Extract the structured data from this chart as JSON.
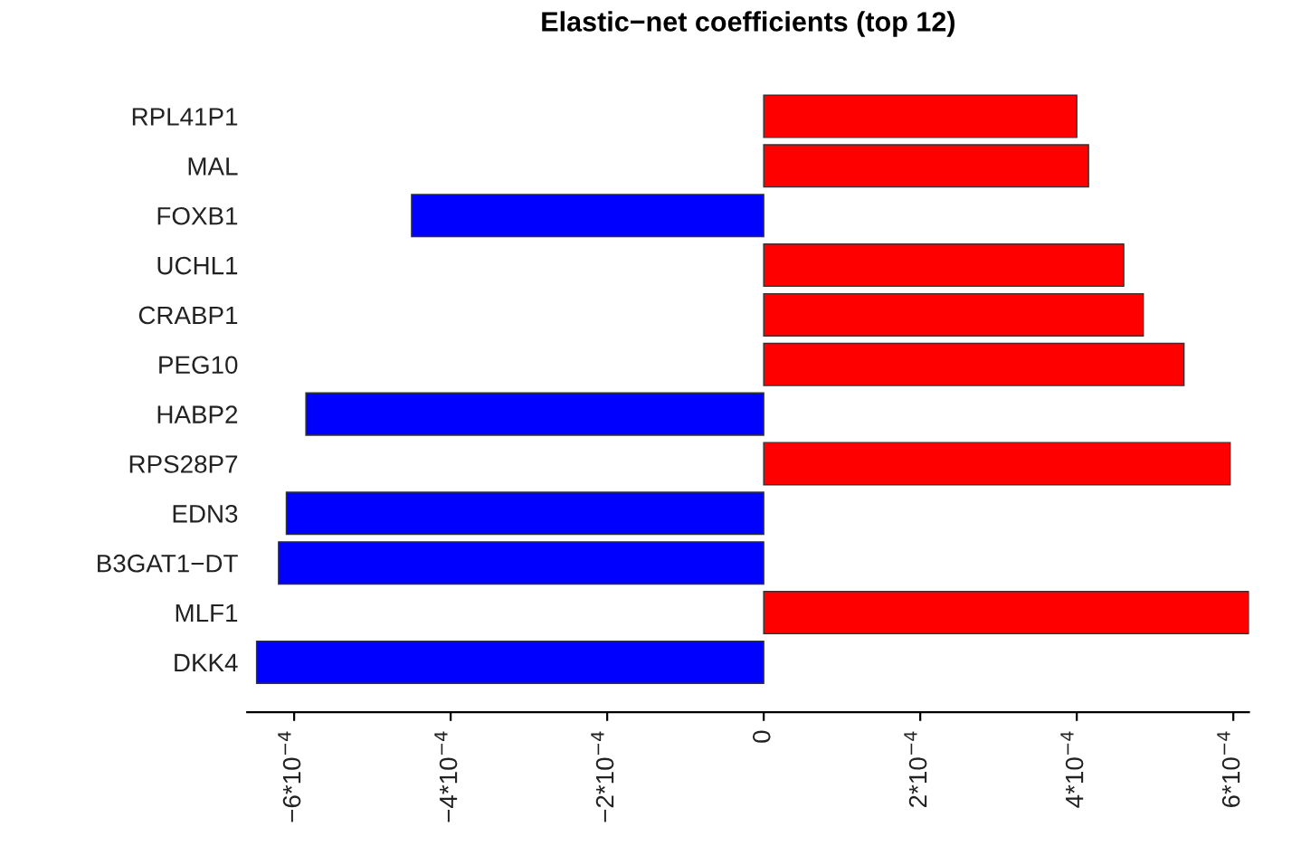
{
  "chart_data": {
    "type": "bar",
    "orientation": "horizontal",
    "title": "Elastic−net coefficients (top 12)",
    "categories": [
      "RPL41P1",
      "MAL",
      "FOXB1",
      "UCHL1",
      "CRABP1",
      "PEG10",
      "HABP2",
      "RPS28P7",
      "EDN3",
      "B3GAT1−DT",
      "MLF1",
      "DKK4"
    ],
    "values": [
      0.0004,
      0.000415,
      -0.00045,
      0.00046,
      0.000485,
      0.000537,
      -0.000585,
      0.000596,
      -0.00061,
      -0.00062,
      0.00062,
      -0.000648
    ],
    "colors": [
      "#ff0000",
      "#ff0000",
      "#0000ff",
      "#ff0000",
      "#ff0000",
      "#ff0000",
      "#0000ff",
      "#ff0000",
      "#0000ff",
      "#0000ff",
      "#ff0000",
      "#0000ff"
    ],
    "xlim": [
      -0.00066,
      0.00062
    ],
    "xticks": [
      {
        "value": -0.0006,
        "label": "−6*10$^{−4}$"
      },
      {
        "value": -0.0004,
        "label": "−4*10$^{−4}$"
      },
      {
        "value": -0.0002,
        "label": "−2*10$^{−4}$"
      },
      0,
      {
        "value": 0.0002,
        "label": "2*10$^{−4}$"
      },
      {
        "value": 0.0004,
        "label": "4*10$^{−4}$"
      },
      {
        "value": 0.0006,
        "label": "6*10$^{−4}$"
      }
    ],
    "grid": false,
    "legend": false
  }
}
